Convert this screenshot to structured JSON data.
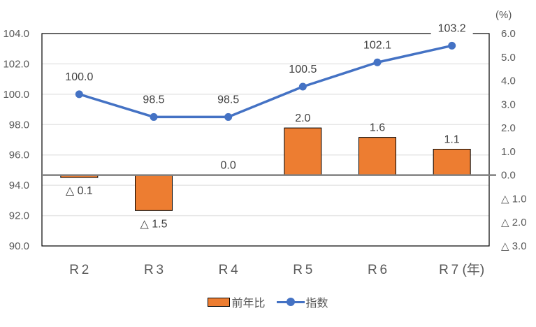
{
  "chart_data": {
    "type": "bar+line",
    "categories": [
      "R 2",
      "R 3",
      "R 4",
      "R 5",
      "R 6",
      "R 7 (年)"
    ],
    "series": [
      {
        "name": "前年比",
        "type": "bar",
        "axis": "right",
        "color": "#ED7D31",
        "values": [
          -0.1,
          -1.5,
          0.0,
          2.0,
          1.6,
          1.1
        ],
        "labels": [
          "△ 0.1",
          "△ 1.5",
          "0.0",
          "2.0",
          "1.6",
          "1.1"
        ]
      },
      {
        "name": "指数",
        "type": "line",
        "axis": "left",
        "color": "#4472C4",
        "values": [
          100.0,
          98.5,
          98.5,
          100.5,
          102.1,
          103.2
        ],
        "labels": [
          "100.0",
          "98.5",
          "98.5",
          "100.5",
          "102.1",
          "103.2"
        ]
      }
    ],
    "left_axis": {
      "ylim": [
        90.0,
        104.0
      ],
      "ticks": [
        "104.0",
        "102.0",
        "100.0",
        "98.0",
        "96.0",
        "94.0",
        "92.0",
        "90.0"
      ]
    },
    "right_axis": {
      "unit": "(%)",
      "ylim": [
        -3.0,
        6.0
      ],
      "ticks": [
        "6.0",
        "5.0",
        "4.0",
        "3.0",
        "2.0",
        "1.0",
        "0.0",
        "△ 1.0",
        "△ 2.0",
        "△ 3.0"
      ]
    },
    "grid": true,
    "legend_position": "bottom",
    "title": "",
    "xlabel": "",
    "ylabel": ""
  },
  "legend": {
    "bar_label": "前年比",
    "line_label": "指数"
  }
}
